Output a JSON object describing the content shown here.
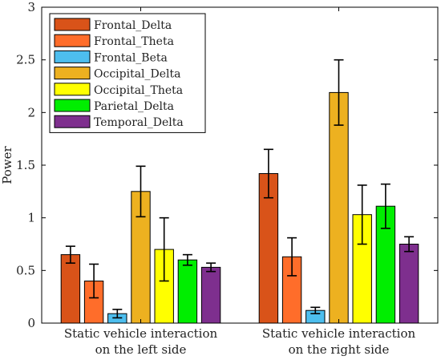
{
  "chart_data": {
    "type": "bar",
    "title": "",
    "xlabel": "",
    "ylabel": "Power",
    "ylim": [
      0,
      3
    ],
    "yticks": [
      "0",
      "0.5",
      "1",
      "1.5",
      "2",
      "2.5",
      "3"
    ],
    "ytick_values": [
      0,
      0.5,
      1,
      1.5,
      2,
      2.5,
      3
    ],
    "grid": false,
    "legend_position": "top-left",
    "categories": [
      [
        "Static vehicle interaction",
        "on the left side"
      ],
      [
        "Static vehicle interaction",
        "on the right side"
      ]
    ],
    "series": [
      {
        "name": "Frontal_Delta",
        "color": "#D95319",
        "values": [
          0.65,
          1.42
        ],
        "errors": [
          0.08,
          0.23
        ]
      },
      {
        "name": "Frontal_Theta",
        "color": "#FF6D2A",
        "values": [
          0.4,
          0.63
        ],
        "errors": [
          0.16,
          0.18
        ]
      },
      {
        "name": "Frontal_Beta",
        "color": "#4DBEEE",
        "values": [
          0.09,
          0.12
        ],
        "errors": [
          0.04,
          0.03
        ]
      },
      {
        "name": "Occipital_Delta",
        "color": "#EDB120",
        "values": [
          1.25,
          2.19
        ],
        "errors": [
          0.24,
          0.31
        ]
      },
      {
        "name": "Occipital_Theta",
        "color": "#FFFF00",
        "values": [
          0.7,
          1.03
        ],
        "errors": [
          0.3,
          0.28
        ]
      },
      {
        "name": "Parietal_Delta",
        "color": "#00EE00",
        "values": [
          0.6,
          1.11
        ],
        "errors": [
          0.05,
          0.21
        ]
      },
      {
        "name": "Temporal_Delta",
        "color": "#7E2F8E",
        "values": [
          0.53,
          0.75
        ],
        "errors": [
          0.04,
          0.07
        ]
      }
    ]
  }
}
